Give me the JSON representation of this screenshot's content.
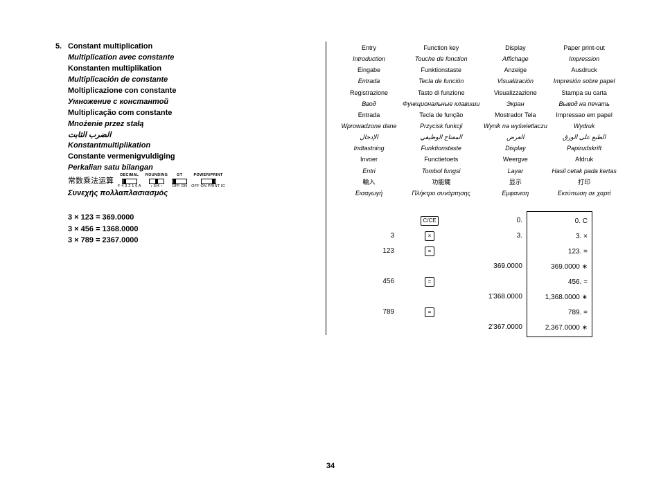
{
  "section_number": "5.",
  "titles": [
    {
      "text": "Constant multiplication",
      "cls": "bold"
    },
    {
      "text": "Multiplication avec constante",
      "cls": "bolditalic"
    },
    {
      "text": "Konstanten multiplikation",
      "cls": "bold"
    },
    {
      "text": "Multiplicación de constante",
      "cls": "bolditalic"
    },
    {
      "text": "Moltiplicazione con constante",
      "cls": "bold"
    },
    {
      "text": "Умножение с константой",
      "cls": "bolditalic"
    },
    {
      "text": "Multiplicação com constante",
      "cls": "bold"
    },
    {
      "text": "Mnożenie przez stałą",
      "cls": "bolditalic"
    },
    {
      "text": "الضرب الثابت",
      "cls": "bolditalic"
    },
    {
      "text": "Konstantmultiplikation",
      "cls": "bolditalic"
    },
    {
      "text": "Constante vermenigvuldiging",
      "cls": "bold"
    },
    {
      "text": "Perkalian satu bilangan",
      "cls": "bolditalic"
    }
  ],
  "cn_title": "常数乘法运算",
  "gr_title": "Συνεχής πολλαπλασιασμός",
  "switches": [
    {
      "label": "DECIMAL",
      "sub": "F 4 3 2 1 0 A",
      "pos": "posL"
    },
    {
      "label": "ROUNDING",
      "sub": "↓ 5/4 ↑",
      "pos": "posM"
    },
    {
      "label": "GT",
      "sub": "OFF ON",
      "pos": "posL"
    },
    {
      "label": "POWER/PRINT",
      "sub": "OFF ON PRINT IC",
      "pos": "posR"
    }
  ],
  "equations": [
    "3 × 123 =  369.0000",
    "3 × 456 = 1368.0000",
    "3 × 789 = 2367.0000"
  ],
  "headers": {
    "rows": [
      [
        "Entry",
        "Function key",
        "Display",
        "Paper print-out"
      ],
      [
        "Introduction",
        "Touche de fonction",
        "Affichage",
        "Impression"
      ],
      [
        "Eingabe",
        "Funktionstaste",
        "Anzeige",
        "Ausdruck"
      ],
      [
        "Entrada",
        "Tecla de función",
        "Visualización",
        "Impresión sobre papel"
      ],
      [
        "Registrazione",
        "Tasto di funzione",
        "Visualizzazione",
        "Stampa su carta"
      ],
      [
        "Ввод",
        "Функциональные клавиши",
        "Экран",
        "Вывод на печать"
      ],
      [
        "Entrada",
        "Tecla de função",
        "Mostrador Tela",
        "Impressao em papel"
      ],
      [
        "Wprowadzone dane",
        "Przycisk funkcji",
        "Wynik na wyświetlaczu",
        "Wydruk"
      ],
      [
        "الإدخال",
        "المفتاح الوظيفي",
        "العرض",
        "الطبع على الورق"
      ],
      [
        "Indtastning",
        "Funktionstaste",
        "Display",
        "Papirudskrift"
      ],
      [
        "Invoer",
        "Functietoets",
        "Weergve",
        "Afdruk"
      ],
      [
        "Entri",
        "Tombol fungsi",
        "Layar",
        "Hasil cetak pada kertas"
      ],
      [
        "輸入",
        "功能鍵",
        "显示",
        "打印"
      ],
      [
        "Εισαγωγή",
        "Πλήκτρο συνάρτησης",
        "Εμφανιση",
        "Εκτύπωση σε χαρτί"
      ]
    ],
    "italic_rows": [
      1,
      3,
      5,
      7,
      8,
      9,
      11,
      13
    ]
  },
  "calc": {
    "rows": [
      {
        "entry": "",
        "key": "C/CE",
        "disp": "0.",
        "print": "0.  C"
      },
      {
        "entry": "3",
        "key": "×",
        "disp": "3.",
        "print": "3.  ×"
      },
      {
        "entry": "123",
        "key": "=",
        "disp": "",
        "print": "123.  ="
      },
      {
        "entry": "",
        "key": "",
        "disp": "369.0000",
        "print": "369.0000  ∗"
      },
      {
        "entry": "456",
        "key": "=",
        "disp": "",
        "print": "456.  ="
      },
      {
        "entry": "",
        "key": "",
        "disp": "1'368.0000",
        "print": "1,368.0000  ∗"
      },
      {
        "entry": "789",
        "key": "=",
        "disp": "",
        "print": "789.  ="
      },
      {
        "entry": "",
        "key": "",
        "disp": "2'367.0000",
        "print": "2,367.0000  ∗"
      }
    ]
  },
  "page_number": "34"
}
